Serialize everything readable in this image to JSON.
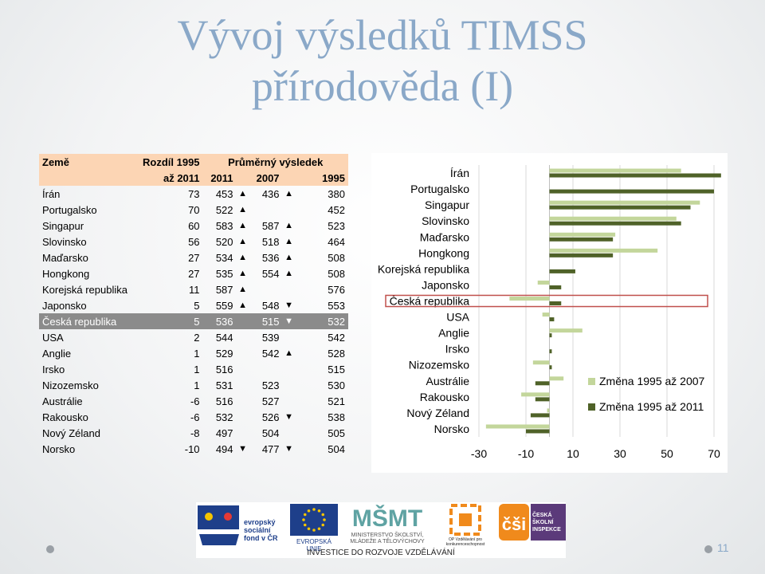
{
  "title": {
    "line1": "Vývoj výsledků TIMSS",
    "line2": "přírodověda (I)"
  },
  "table": {
    "header": {
      "country": "Země",
      "diff_line1": "Rozdíl 1995",
      "diff_line2": "až 2011",
      "avg": "Průměrný výsledek",
      "y2011": "2011",
      "y2007": "2007",
      "y1995": "1995"
    },
    "rows": [
      {
        "country": "Írán",
        "diff": "73",
        "v2011": "453",
        "m2011": "▲",
        "v2007": "436",
        "m2007": "▲",
        "v1995": "380"
      },
      {
        "country": "Portugalsko",
        "diff": "70",
        "v2011": "522",
        "m2011": "▲",
        "v2007": "",
        "m2007": "",
        "v1995": "452"
      },
      {
        "country": "Singapur",
        "diff": "60",
        "v2011": "583",
        "m2011": "▲",
        "v2007": "587",
        "m2007": "▲",
        "v1995": "523"
      },
      {
        "country": "Slovinsko",
        "diff": "56",
        "v2011": "520",
        "m2011": "▲",
        "v2007": "518",
        "m2007": "▲",
        "v1995": "464"
      },
      {
        "country": "Maďarsko",
        "diff": "27",
        "v2011": "534",
        "m2011": "▲",
        "v2007": "536",
        "m2007": "▲",
        "v1995": "508"
      },
      {
        "country": "Hongkong",
        "diff": "27",
        "v2011": "535",
        "m2011": "▲",
        "v2007": "554",
        "m2007": "▲",
        "v1995": "508"
      },
      {
        "country": "Korejská republika",
        "diff": "11",
        "v2011": "587",
        "m2011": "▲",
        "v2007": "",
        "m2007": "",
        "v1995": "576"
      },
      {
        "country": "Japonsko",
        "diff": "5",
        "v2011": "559",
        "m2011": "▲",
        "v2007": "548",
        "m2007": "▼",
        "v1995": "553"
      },
      {
        "country": "Česká republika",
        "diff": "5",
        "v2011": "536",
        "m2011": "",
        "v2007": "515",
        "m2007": "▼",
        "v1995": "532"
      },
      {
        "country": "USA",
        "diff": "2",
        "v2011": "544",
        "m2011": "",
        "v2007": "539",
        "m2007": "",
        "v1995": "542"
      },
      {
        "country": "Anglie",
        "diff": "1",
        "v2011": "529",
        "m2011": "",
        "v2007": "542",
        "m2007": "▲",
        "v1995": "528"
      },
      {
        "country": "Irsko",
        "diff": "1",
        "v2011": "516",
        "m2011": "",
        "v2007": "",
        "m2007": "",
        "v1995": "515"
      },
      {
        "country": "Nizozemsko",
        "diff": "1",
        "v2011": "531",
        "m2011": "",
        "v2007": "523",
        "m2007": "",
        "v1995": "530"
      },
      {
        "country": "Austrálie",
        "diff": "-6",
        "v2011": "516",
        "m2011": "",
        "v2007": "527",
        "m2007": "",
        "v1995": "521"
      },
      {
        "country": "Rakousko",
        "diff": "-6",
        "v2011": "532",
        "m2011": "",
        "v2007": "526",
        "m2007": "▼",
        "v1995": "538"
      },
      {
        "country": "Nový Zéland",
        "diff": "-8",
        "v2011": "497",
        "m2011": "",
        "v2007": "504",
        "m2007": "",
        "v1995": "505"
      },
      {
        "country": "Norsko",
        "diff": "-10",
        "v2011": "494",
        "m2011": "▼",
        "v2007": "477",
        "m2007": "▼",
        "v1995": "504"
      }
    ]
  },
  "chart_data": {
    "type": "bar",
    "orientation": "horizontal",
    "categories": [
      "Írán",
      "Portugalsko",
      "Singapur",
      "Slovinsko",
      "Maďarsko",
      "Hongkong",
      "Korejská republika",
      "Japonsko",
      "Česká republika",
      "USA",
      "Anglie",
      "Irsko",
      "Nizozemsko",
      "Austrálie",
      "Rakousko",
      "Nový Zéland",
      "Norsko"
    ],
    "series": [
      {
        "name": "Změna 1995 až 2007",
        "color": "#c3d69b",
        "values": [
          56,
          null,
          64,
          54,
          28,
          46,
          null,
          -5,
          -17,
          -3,
          14,
          null,
          -7,
          6,
          -12,
          -1,
          -27
        ]
      },
      {
        "name": "Změna 1995 až 2011",
        "color": "#4f6228",
        "values": [
          73,
          70,
          60,
          56,
          27,
          27,
          11,
          5,
          5,
          2,
          1,
          1,
          1,
          -6,
          -6,
          -8,
          -10
        ]
      }
    ],
    "xlim": [
      -30,
      70
    ],
    "xticks": [
      "-30",
      "-10",
      "10",
      "30",
      "50",
      "70"
    ],
    "highlight": "Česká republika",
    "highlight_color": "#c0504d",
    "legend_position": "right",
    "grid": true
  },
  "logos": {
    "esf_text": "evropský sociální fond v ČR",
    "eu_text": "EVROPSKÁ UNIE",
    "msmt_text": "MINISTERSTVO ŠKOLSTVÍ, MLÁDEŽE A TĚLOVÝCHOVY",
    "op_text": "OP Vzdělávání pro konkurenceschopnost",
    "csi_text": "ČESKÁ ŠKOLNÍ INSPEKCE",
    "caption": "INVESTICE DO ROZVOJE VZDĚLÁVÁNÍ"
  },
  "page_number": "11"
}
